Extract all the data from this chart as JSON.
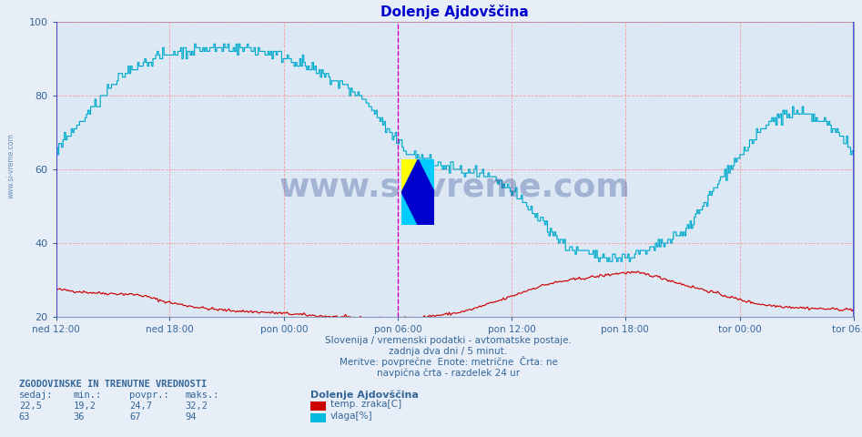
{
  "title": "Dolenje Ajdovščina",
  "title_color": "#0000cc",
  "background_color": "#e8eef8",
  "plot_bg_color": "#dde8f5",
  "grid_color_h": "#ff8888",
  "grid_color_v": "#ff8888",
  "ylim": [
    20,
    100
  ],
  "yticks": [
    20,
    40,
    60,
    80,
    100
  ],
  "tick_color": "#336699",
  "xtick_labels": [
    "ned 12:00",
    "ned 18:00",
    "pon 00:00",
    "pon 06:00",
    "pon 12:00",
    "pon 18:00",
    "tor 00:00",
    "tor 06:00"
  ],
  "temp_color": "#cc0000",
  "humidity_color": "#00aacc",
  "vline_color_edge": "#3333cc",
  "vline_color_mid": "#cc00cc",
  "watermark_text": "www.si-vreme.com",
  "watermark_color": "#1a3a8a",
  "watermark_alpha": 0.3,
  "footer_line1": "Slovenija / vremenski podatki - avtomatske postaje.",
  "footer_line2": "zadnja dva dni / 5 minut.",
  "footer_line3": "Meritve: povprečne  Enote: metrične  Črta: ne",
  "footer_line4": "navpična črta - razdelek 24 ur",
  "footer_color": "#336699",
  "legend_title": "Dolenje Ajdovščina",
  "legend_entries": [
    "temp. zraka[C]",
    "vlaga[%]"
  ],
  "legend_colors": [
    "#cc0000",
    "#00bbdd"
  ],
  "stats_header": "ZGODOVINSKE IN TRENUTNE VREDNOSTI",
  "stats_cols": [
    "sedaj:",
    "min.:",
    "povpr.:",
    "maks.:"
  ],
  "stats_temp": [
    "22,5",
    "19,2",
    "24,7",
    "32,2"
  ],
  "stats_humidity": [
    "63",
    "36",
    "67",
    "94"
  ],
  "n_points": 577
}
